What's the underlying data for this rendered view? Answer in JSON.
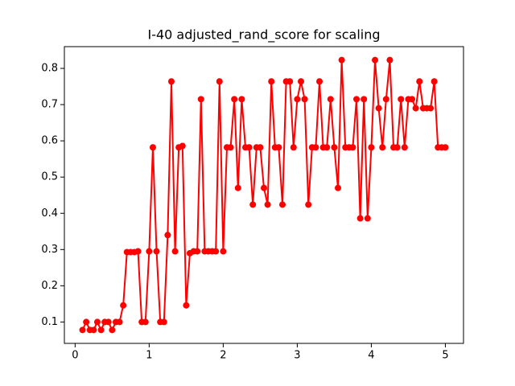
{
  "chart_data": {
    "type": "line",
    "title": "I-40 adjusted_rand_score for scaling",
    "x": [
      0.1,
      0.15,
      0.2,
      0.25,
      0.3,
      0.35,
      0.4,
      0.45,
      0.5,
      0.55,
      0.6,
      0.65,
      0.7,
      0.75,
      0.8,
      0.85,
      0.9,
      0.95,
      1.0,
      1.05,
      1.1,
      1.15,
      1.2,
      1.25,
      1.3,
      1.35,
      1.4,
      1.45,
      1.5,
      1.55,
      1.6,
      1.65,
      1.7,
      1.75,
      1.8,
      1.85,
      1.9,
      1.95,
      2.0,
      2.05,
      2.1,
      2.15,
      2.2,
      2.25,
      2.3,
      2.35,
      2.4,
      2.45,
      2.5,
      2.55,
      2.6,
      2.65,
      2.7,
      2.75,
      2.8,
      2.85,
      2.9,
      2.95,
      3.0,
      3.05,
      3.1,
      3.15,
      3.2,
      3.25,
      3.3,
      3.35,
      3.4,
      3.45,
      3.5,
      3.55,
      3.6,
      3.65,
      3.7,
      3.75,
      3.8,
      3.85,
      3.9,
      3.95,
      4.0,
      4.05,
      4.1,
      4.15,
      4.2,
      4.25,
      4.3,
      4.35,
      4.4,
      4.45,
      4.5,
      4.55,
      4.6,
      4.65,
      4.7,
      4.75,
      4.8,
      4.85,
      4.9,
      4.95,
      5.0
    ],
    "series": [
      {
        "color": "#ff0000",
        "values": [
          0.078,
          0.1,
          0.078,
          0.078,
          0.1,
          0.078,
          0.1,
          0.1,
          0.078,
          0.1,
          0.1,
          0.146,
          0.293,
          0.293,
          0.293,
          0.295,
          0.1,
          0.1,
          0.295,
          0.582,
          0.295,
          0.1,
          0.1,
          0.34,
          0.764,
          0.295,
          0.582,
          0.586,
          0.146,
          0.29,
          0.295,
          0.295,
          0.715,
          0.295,
          0.295,
          0.295,
          0.295,
          0.764,
          0.295,
          0.582,
          0.582,
          0.715,
          0.47,
          0.715,
          0.582,
          0.582,
          0.424,
          0.582,
          0.582,
          0.47,
          0.424,
          0.764,
          0.582,
          0.582,
          0.424,
          0.764,
          0.764,
          0.582,
          0.715,
          0.764,
          0.715,
          0.424,
          0.582,
          0.582,
          0.764,
          0.582,
          0.582,
          0.715,
          0.582,
          0.47,
          0.823,
          0.582,
          0.582,
          0.582,
          0.715,
          0.386,
          0.715,
          0.386,
          0.582,
          0.823,
          0.69,
          0.582,
          0.715,
          0.823,
          0.582,
          0.582,
          0.715,
          0.582,
          0.715,
          0.715,
          0.69,
          0.764,
          0.69,
          0.69,
          0.69,
          0.764,
          0.582,
          0.582,
          0.582
        ]
      }
    ],
    "xlim": [
      -0.145,
      5.245
    ],
    "ylim": [
      0.041,
      0.86
    ],
    "xticks": [
      0,
      1,
      2,
      3,
      4,
      5
    ],
    "yticks": [
      0.1,
      0.2,
      0.3,
      0.4,
      0.5,
      0.6,
      0.7,
      0.8
    ]
  }
}
